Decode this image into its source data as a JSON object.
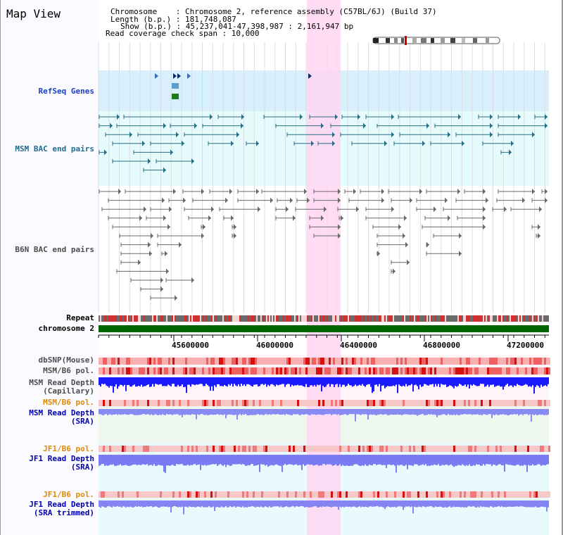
{
  "page_title": "Map View",
  "info": {
    "line1": "Chromosome    : Chromosome 2, reference assembly (C57BL/6J) (Build 37)",
    "line2": "Length (b.p.) : 181,748,087",
    "line3": "Show (b.p.) : 45,237,041-47,398,987 : 2,161,947 bp",
    "line4": "Read coverage check span : 10,000"
  },
  "tracks": {
    "refseq": "RefSeq Genes",
    "msm_bac": "MSM BAC end pairs",
    "b6n_bac": "B6N BAC end pairs",
    "repeat": "Repeat",
    "chromosome": "chromosome 2",
    "dbsnp": "dbSNP(Mouse)",
    "msm_pol_1": "MSM/B6 pol.",
    "msm_depth_cap_1": "MSM Read Depth",
    "msm_depth_cap_2": "(Capillary)",
    "msm_pol_2": "MSM/B6 pol.",
    "msm_depth_sra_1": "MSM Read Depth",
    "msm_depth_sra_2": "(SRA)",
    "jf1_pol_1": "JF1/B6 pol.",
    "jf1_depth_sra_1": "JF1 Read Depth",
    "jf1_depth_sra_2": "(SRA)",
    "jf1_pol_2": "JF1/B6 pol.",
    "jf1_depth_tr_1": "JF1 Read Depth",
    "jf1_depth_tr_2": "(SRA trimmed)"
  },
  "axis_ticks": [
    "45600000",
    "46000000",
    "46400000",
    "46800000",
    "47200000"
  ],
  "colors": {
    "refseq_label": "#1f3fbf",
    "msm_label": "#1f6d8f",
    "b6n_label": "#4d4d4d",
    "orange_label": "#e08a00",
    "blue_label": "#0000b0",
    "highlight": "#ffd6f2",
    "chromosome": "#006400"
  }
}
